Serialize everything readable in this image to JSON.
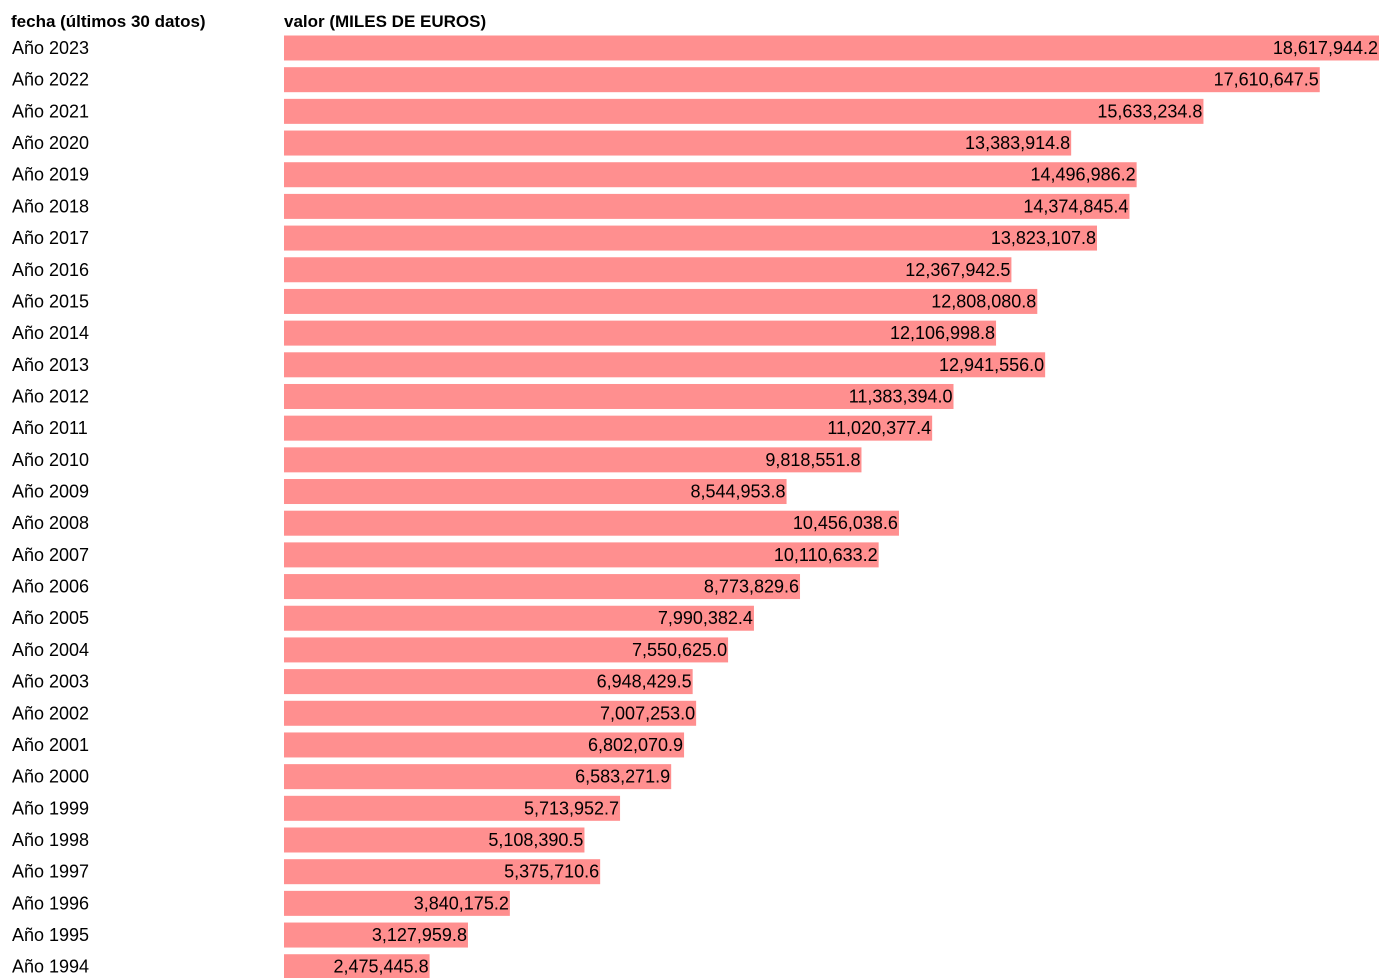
{
  "chart_data": {
    "type": "bar",
    "orientation": "horizontal",
    "category_header": "fecha (últimos 30 datos)",
    "value_header": "valor (MILES DE EUROS)",
    "bar_color": "#ff8f8f",
    "rows": [
      {
        "label": "Año 2023",
        "value": 18617944.2,
        "value_label": "18,617,944.2"
      },
      {
        "label": "Año 2022",
        "value": 17610647.5,
        "value_label": "17,610,647.5"
      },
      {
        "label": "Año 2021",
        "value": 15633234.8,
        "value_label": "15,633,234.8"
      },
      {
        "label": "Año 2020",
        "value": 13383914.8,
        "value_label": "13,383,914.8"
      },
      {
        "label": "Año 2019",
        "value": 14496986.2,
        "value_label": "14,496,986.2"
      },
      {
        "label": "Año 2018",
        "value": 14374845.4,
        "value_label": "14,374,845.4"
      },
      {
        "label": "Año 2017",
        "value": 13823107.8,
        "value_label": "13,823,107.8"
      },
      {
        "label": "Año 2016",
        "value": 12367942.5,
        "value_label": "12,367,942.5"
      },
      {
        "label": "Año 2015",
        "value": 12808080.8,
        "value_label": "12,808,080.8"
      },
      {
        "label": "Año 2014",
        "value": 12106998.8,
        "value_label": "12,106,998.8"
      },
      {
        "label": "Año 2013",
        "value": 12941556.0,
        "value_label": "12,941,556.0"
      },
      {
        "label": "Año 2012",
        "value": 11383394.0,
        "value_label": "11,383,394.0"
      },
      {
        "label": "Año 2011",
        "value": 11020377.4,
        "value_label": "11,020,377.4"
      },
      {
        "label": "Año 2010",
        "value": 9818551.8,
        "value_label": "9,818,551.8"
      },
      {
        "label": "Año 2009",
        "value": 8544953.8,
        "value_label": "8,544,953.8"
      },
      {
        "label": "Año 2008",
        "value": 10456038.6,
        "value_label": "10,456,038.6"
      },
      {
        "label": "Año 2007",
        "value": 10110633.2,
        "value_label": "10,110,633.2"
      },
      {
        "label": "Año 2006",
        "value": 8773829.6,
        "value_label": "8,773,829.6"
      },
      {
        "label": "Año 2005",
        "value": 7990382.4,
        "value_label": "7,990,382.4"
      },
      {
        "label": "Año 2004",
        "value": 7550625.0,
        "value_label": "7,550,625.0"
      },
      {
        "label": "Año 2003",
        "value": 6948429.5,
        "value_label": "6,948,429.5"
      },
      {
        "label": "Año 2002",
        "value": 7007253.0,
        "value_label": "7,007,253.0"
      },
      {
        "label": "Año 2001",
        "value": 6802070.9,
        "value_label": "6,802,070.9"
      },
      {
        "label": "Año 2000",
        "value": 6583271.9,
        "value_label": "6,583,271.9"
      },
      {
        "label": "Año 1999",
        "value": 5713952.7,
        "value_label": "5,713,952.7"
      },
      {
        "label": "Año 1998",
        "value": 5108390.5,
        "value_label": "5,108,390.5"
      },
      {
        "label": "Año 1997",
        "value": 5375710.6,
        "value_label": "5,375,710.6"
      },
      {
        "label": "Año 1996",
        "value": 3840175.2,
        "value_label": "3,840,175.2"
      },
      {
        "label": "Año 1995",
        "value": 3127959.8,
        "value_label": "3,127,959.8"
      },
      {
        "label": "Año 1994",
        "value": 2475445.8,
        "value_label": "2,475,445.8"
      }
    ]
  }
}
